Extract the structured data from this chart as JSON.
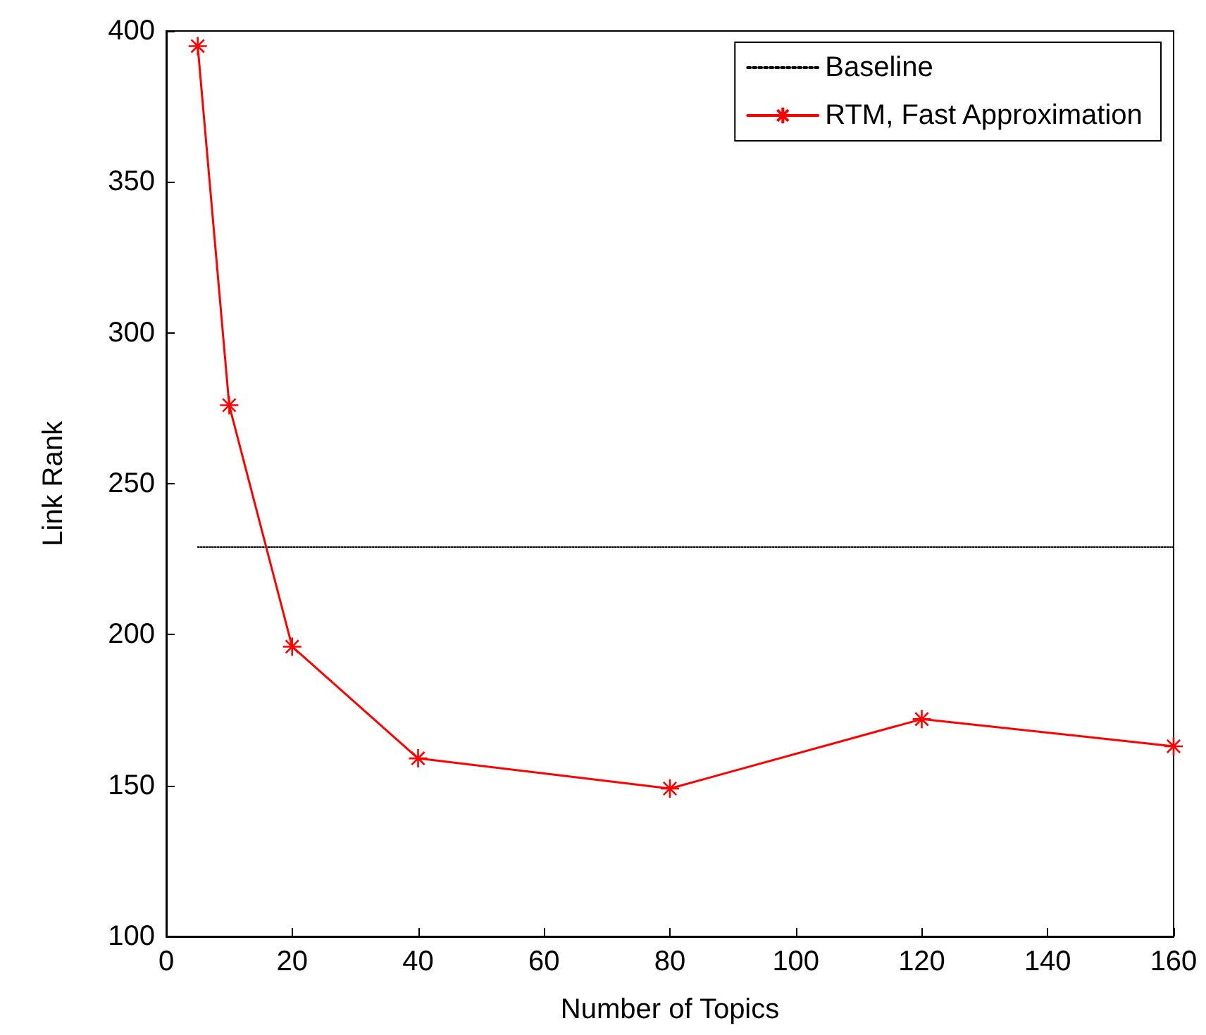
{
  "chart_data": {
    "type": "line",
    "xlabel": "Number of Topics",
    "ylabel": "Link Rank",
    "series": [
      {
        "name": "Baseline",
        "color": "#000000",
        "x": [
          5,
          160
        ],
        "values": [
          229,
          229
        ],
        "line_style": "dotted",
        "marker": "none"
      },
      {
        "name": "RTM, Fast Approximation",
        "color": "#ff0000",
        "x": [
          5,
          10,
          20,
          40,
          80,
          120,
          160
        ],
        "values": [
          395,
          276,
          196,
          159,
          149,
          172,
          163
        ],
        "line_style": "solid",
        "marker": "cross"
      }
    ],
    "xlim": [
      0,
      160
    ],
    "xticks": [
      0,
      20,
      40,
      60,
      80,
      100,
      120,
      140,
      160
    ],
    "ylim": [
      100,
      400
    ],
    "yticks": [
      100,
      150,
      200,
      250,
      300,
      350,
      400
    ],
    "grid": false,
    "legend": "top right"
  }
}
